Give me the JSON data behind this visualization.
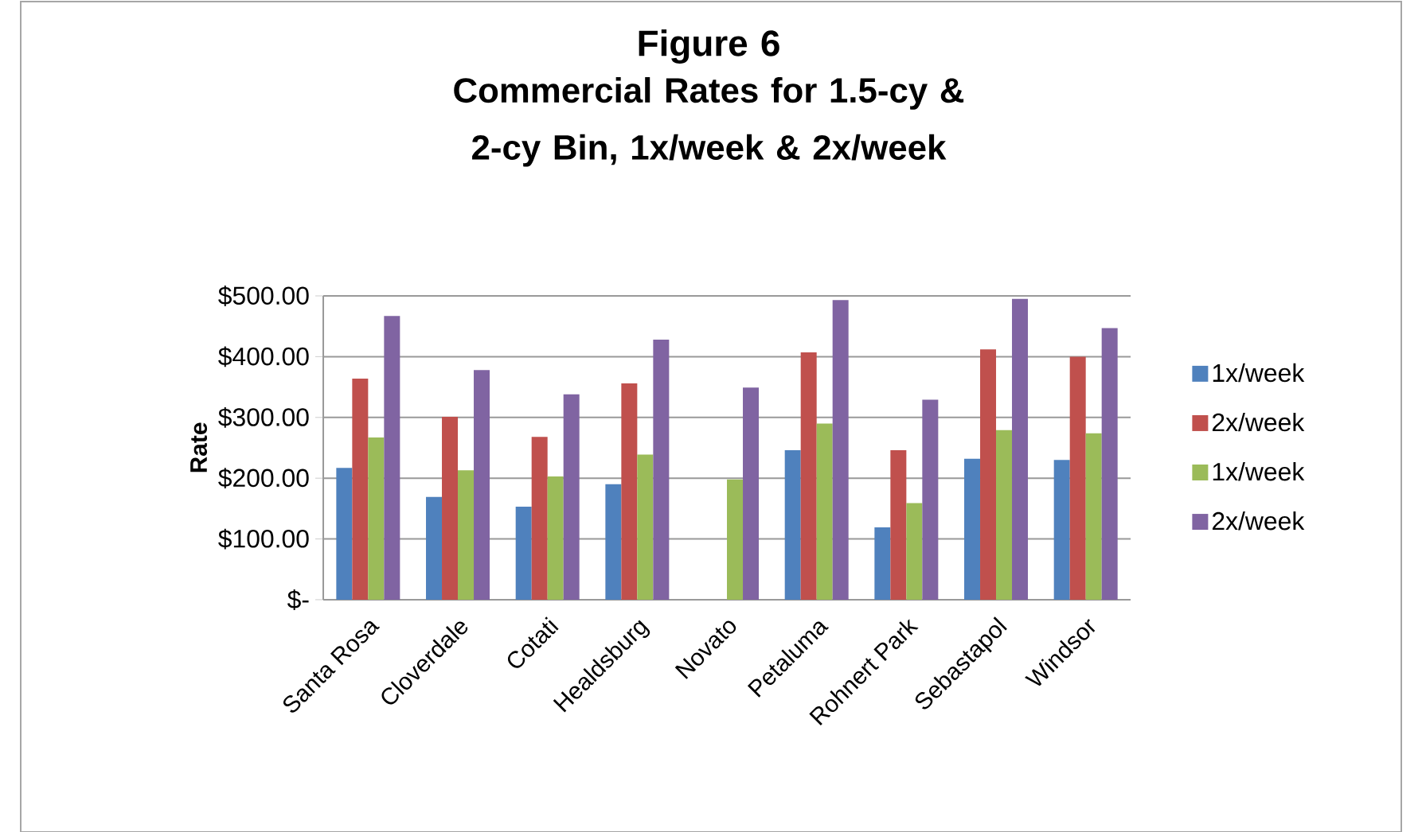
{
  "chart_data": {
    "type": "bar",
    "title": "Figure 6",
    "subtitle": "Commercial Rates for 1.5-cy & 2-cy Bin, 1x/week & 2x/week",
    "ylabel": "Rate",
    "categories": [
      "Santa Rosa",
      "Cloverdale",
      "Cotati",
      "Healdsburg",
      "Novato",
      "Petaluma",
      "Rohnert Park",
      "Sebastapol",
      "Windsor"
    ],
    "series": [
      {
        "name": "1x/week",
        "color": "#4f81bd",
        "values": [
          217,
          169,
          153,
          190,
          null,
          246,
          119,
          232,
          230
        ]
      },
      {
        "name": "2x/week",
        "color": "#c0504d",
        "values": [
          364,
          301,
          268,
          356,
          null,
          407,
          246,
          412,
          400
        ]
      },
      {
        "name": "1x/week",
        "color": "#9bbb59",
        "values": [
          267,
          213,
          203,
          239,
          198,
          290,
          159,
          279,
          274
        ]
      },
      {
        "name": "2x/week",
        "color": "#8064a2",
        "values": [
          467,
          378,
          338,
          428,
          349,
          493,
          329,
          495,
          447
        ]
      }
    ],
    "ylim": [
      0,
      500
    ],
    "yticks": [
      {
        "value": 0,
        "label": "$-"
      },
      {
        "value": 100,
        "label": "$100.00"
      },
      {
        "value": 200,
        "label": "$200.00"
      },
      {
        "value": 300,
        "label": "$300.00"
      },
      {
        "value": 400,
        "label": "$400.00"
      },
      {
        "value": 500,
        "label": "$500.00"
      }
    ],
    "grid": "y",
    "legend": "right"
  }
}
